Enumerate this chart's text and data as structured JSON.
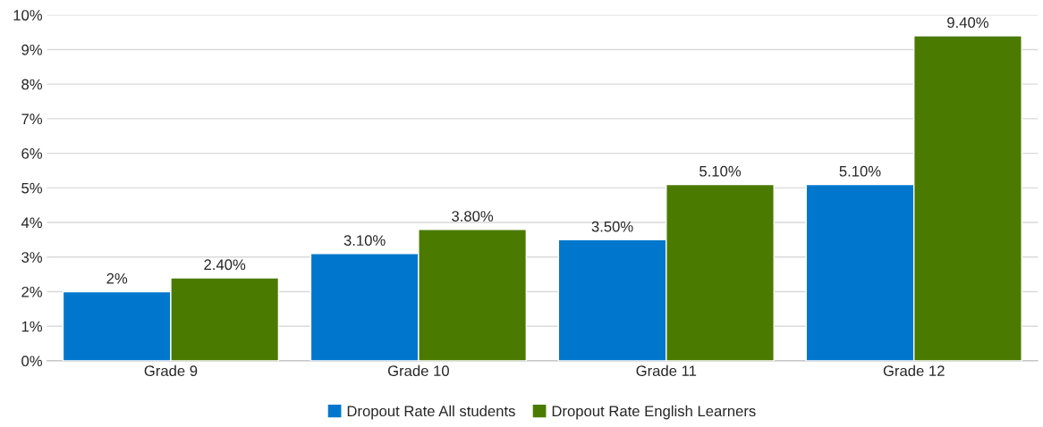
{
  "chart_data": {
    "type": "bar",
    "categories": [
      "Grade 9",
      "Grade 10",
      "Grade 11",
      "Grade 12"
    ],
    "series": [
      {
        "name": "Dropout Rate All students",
        "color": "#0077cc",
        "values": [
          2,
          3.1,
          3.5,
          5.1
        ],
        "value_labels": [
          "2%",
          "3.10%",
          "3.50%",
          "5.10%"
        ]
      },
      {
        "name": "Dropout Rate English Learners",
        "color": "#4a7a00",
        "values": [
          2.4,
          3.8,
          5.1,
          9.4
        ],
        "value_labels": [
          "2.40%",
          "3.80%",
          "5.10%",
          "9.40%"
        ]
      }
    ],
    "ylim": [
      0,
      10
    ],
    "yticks": [
      {
        "value": 0,
        "label": "0%"
      },
      {
        "value": 1,
        "label": "1%"
      },
      {
        "value": 2,
        "label": "2%"
      },
      {
        "value": 3,
        "label": "3%"
      },
      {
        "value": 4,
        "label": "4%"
      },
      {
        "value": 5,
        "label": "5%"
      },
      {
        "value": 6,
        "label": "6%"
      },
      {
        "value": 7,
        "label": "7%"
      },
      {
        "value": 8,
        "label": "8%"
      },
      {
        "value": 9,
        "label": "9%"
      },
      {
        "value": 10,
        "label": "10%"
      }
    ],
    "grid": "y",
    "legend": "bottom"
  }
}
